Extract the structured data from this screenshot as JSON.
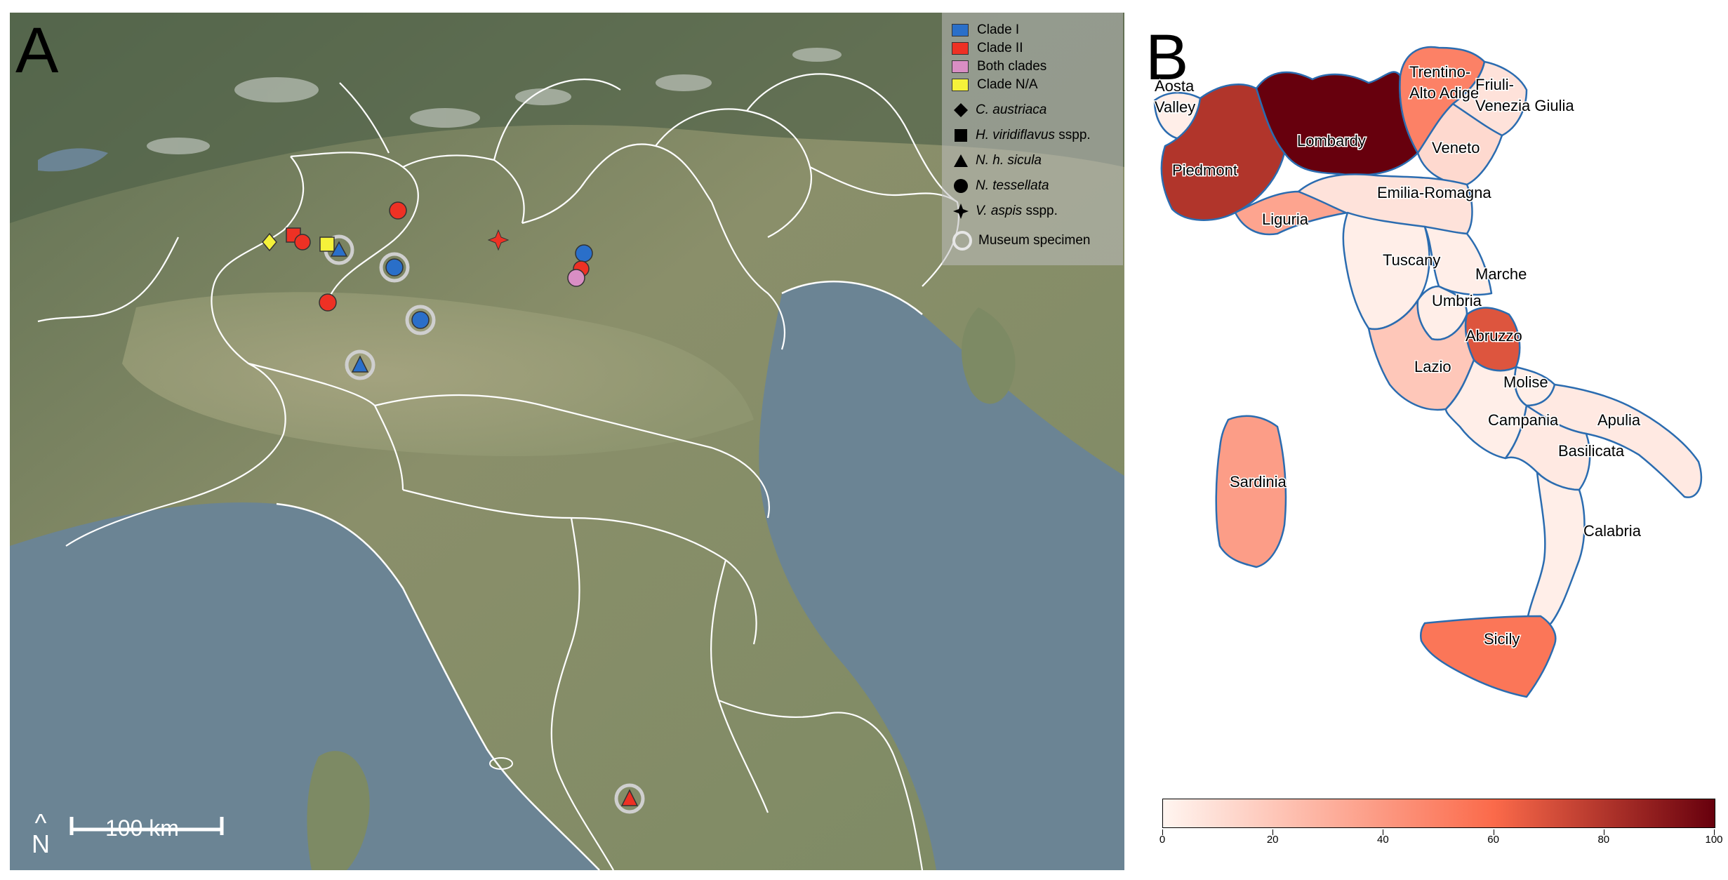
{
  "panels": {
    "a_letter": "A",
    "b_letter": "B"
  },
  "legend": {
    "clades": [
      {
        "label": "Clade I",
        "color": "#2a6fc9"
      },
      {
        "label": "Clade II",
        "color": "#ee3124"
      },
      {
        "label": "Both clades",
        "color": "#d98ec4"
      },
      {
        "label": "Clade N/A",
        "color": "#f5f23a"
      }
    ],
    "species": [
      {
        "symbol": "diamond-icon",
        "name": "C. austriaca",
        "suffix": ""
      },
      {
        "symbol": "square-icon",
        "name": "H. viridiflavus",
        "suffix": " sspp."
      },
      {
        "symbol": "triangle-icon",
        "name": "N. h. sicula",
        "suffix": ""
      },
      {
        "symbol": "circle-icon",
        "name": "N. tessellata",
        "suffix": ""
      },
      {
        "symbol": "star-icon",
        "name": "V. aspis",
        "suffix": " sspp."
      }
    ],
    "museum": "Museum specimen"
  },
  "scale_bar": "100 km",
  "north_arrow": {
    "symbol": "^",
    "letter": "N"
  },
  "records": [
    {
      "species": "C. austriaca",
      "clade": "Clade N/A",
      "museum": false
    },
    {
      "species": "H. viridiflavus sspp.",
      "clade": "Clade II",
      "museum": false
    },
    {
      "species": "N. tessellata",
      "clade": "Clade II",
      "museum": false
    },
    {
      "species": "H. viridiflavus sspp.",
      "clade": "Clade N/A",
      "museum": false
    },
    {
      "species": "N. h. sicula",
      "clade": "Clade I",
      "museum": true
    },
    {
      "species": "N. tessellata",
      "clade": "Clade II",
      "museum": false
    },
    {
      "species": "N. tessellata",
      "clade": "Clade I",
      "museum": true
    },
    {
      "species": "N. tessellata",
      "clade": "Clade II",
      "museum": false
    },
    {
      "species": "N. tessellata",
      "clade": "Clade I",
      "museum": true
    },
    {
      "species": "N. h. sicula",
      "clade": "Clade I",
      "museum": true
    },
    {
      "species": "V. aspis sspp.",
      "clade": "Clade II",
      "museum": false
    },
    {
      "species": "N. tessellata",
      "clade": "Clade I",
      "museum": false
    },
    {
      "species": "N. tessellata",
      "clade": "Clade II",
      "museum": false
    },
    {
      "species": "N. tessellata",
      "clade": "Both clades",
      "museum": false
    },
    {
      "species": "N. h. sicula",
      "clade": "Clade II",
      "museum": true
    }
  ],
  "choropleth": {
    "regions": [
      {
        "name": "Aosta\nValley",
        "value": 3
      },
      {
        "name": "Piedmont",
        "value": 80
      },
      {
        "name": "Lombardy",
        "value": 100
      },
      {
        "name": "Trentino-\nAlto Adige",
        "value": 50
      },
      {
        "name": "Friuli-\nVenezia Giulia",
        "value": 8
      },
      {
        "name": "Veneto",
        "value": 12
      },
      {
        "name": "Liguria",
        "value": 35
      },
      {
        "name": "Emilia-Romagna",
        "value": 8
      },
      {
        "name": "Tuscany",
        "value": 3
      },
      {
        "name": "Marche",
        "value": 3
      },
      {
        "name": "Umbria",
        "value": 3
      },
      {
        "name": "Abruzzo",
        "value": 68
      },
      {
        "name": "Lazio",
        "value": 20
      },
      {
        "name": "Molise",
        "value": 3
      },
      {
        "name": "Campania",
        "value": 3
      },
      {
        "name": "Apulia",
        "value": 5
      },
      {
        "name": "Basilicata",
        "value": 5
      },
      {
        "name": "Calabria",
        "value": 3
      },
      {
        "name": "Sardinia",
        "value": 38
      },
      {
        "name": "Sicily",
        "value": 55
      }
    ],
    "colorbar": {
      "min": 0,
      "max": 100,
      "ticks": [
        "0",
        "20",
        "40",
        "60",
        "80",
        "100"
      ],
      "low_color": "#fff5f0",
      "mid_color": "#fb6a4a",
      "high_color": "#67000d"
    }
  },
  "colors": {
    "border_white": "#ffffff",
    "sea": "#6b8494",
    "coast_blue": "#2b6cb0"
  }
}
